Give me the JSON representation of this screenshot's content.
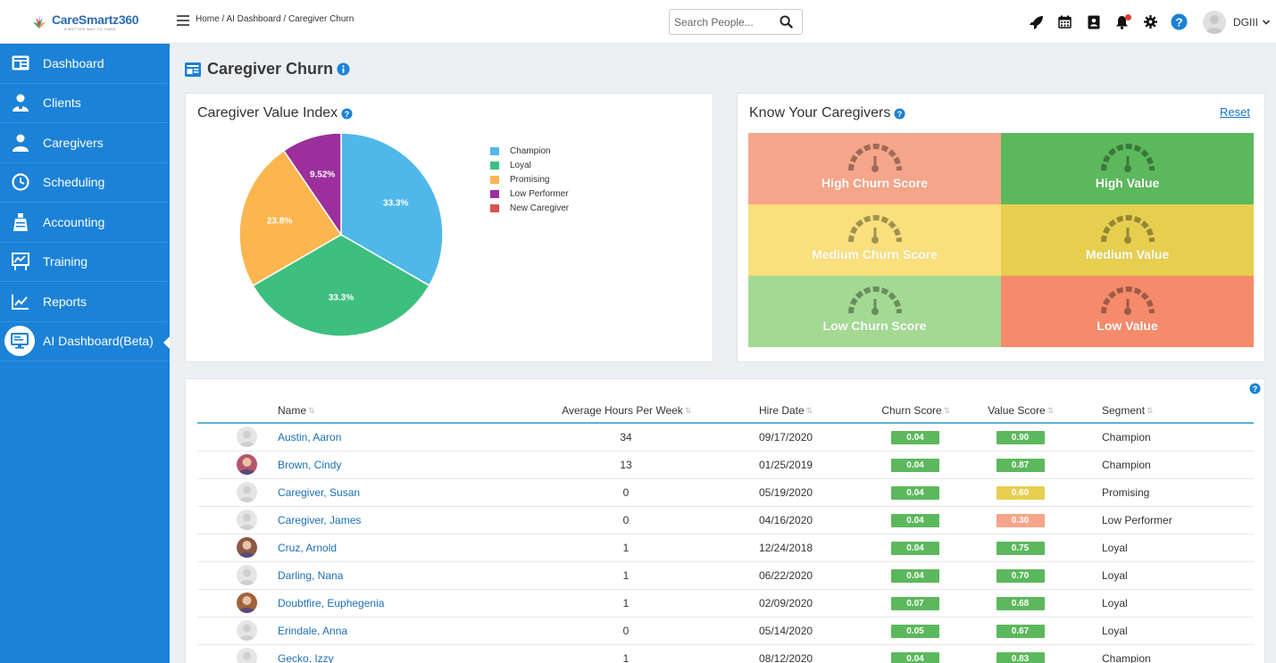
{
  "app": {
    "name": "CareSmartz360",
    "tagline": "A BETTER WAY TO CARE"
  },
  "sidebar": {
    "items": [
      {
        "label": "Dashboard",
        "icon": "dashboard-icon"
      },
      {
        "label": "Clients",
        "icon": "clients-icon"
      },
      {
        "label": "Caregivers",
        "icon": "caregivers-icon"
      },
      {
        "label": "Scheduling",
        "icon": "clock-icon"
      },
      {
        "label": "Accounting",
        "icon": "accounting-icon"
      },
      {
        "label": "Training",
        "icon": "training-icon"
      },
      {
        "label": "Reports",
        "icon": "reports-icon"
      },
      {
        "label": "AI Dashboard(Beta)",
        "icon": "monitor-icon",
        "active": true
      }
    ]
  },
  "header": {
    "breadcrumb": "Home / AI Dashboard / Caregiver Churn",
    "search_placeholder": "Search People...",
    "user": "DGIII"
  },
  "page": {
    "title": "Caregiver Churn"
  },
  "value_index": {
    "title": "Caregiver Value Index"
  },
  "chart_data": {
    "type": "pie",
    "series": [
      {
        "name": "Champion",
        "value": 33.3,
        "label": "33.3%",
        "color": "#4fb8e8"
      },
      {
        "name": "Loyal",
        "value": 33.3,
        "label": "33.3%",
        "color": "#3dbf7f"
      },
      {
        "name": "Promising",
        "value": 23.8,
        "label": "23.8%",
        "color": "#fbb64f"
      },
      {
        "name": "Low Performer",
        "value": 9.52,
        "label": "9.52%",
        "color": "#9b2f9b"
      },
      {
        "name": "New Caregiver",
        "value": 0,
        "label": "",
        "color": "#d9534f"
      }
    ],
    "legend_position": "right"
  },
  "know": {
    "title": "Know Your Caregivers",
    "reset": "Reset",
    "cells": [
      {
        "label": "High Churn Score",
        "color": "#f5a58a"
      },
      {
        "label": "High Value",
        "color": "#5cb85c"
      },
      {
        "label": "Medium Churn Score",
        "color": "#f9e07c"
      },
      {
        "label": "Medium Value",
        "color": "#e6cf4f"
      },
      {
        "label": "Low Churn Score",
        "color": "#a3d992"
      },
      {
        "label": "Low Value",
        "color": "#f58b6a"
      }
    ]
  },
  "table": {
    "columns": [
      "Name",
      "Average Hours Per Week",
      "Hire Date",
      "Churn Score",
      "Value Score",
      "Segment"
    ],
    "rows": [
      {
        "name": "Austin, Aaron",
        "hours": "34",
        "hire": "09/17/2020",
        "churn": "0.04",
        "churn_color": "#5cb85c",
        "value": "0.90",
        "value_color": "#5cb85c",
        "segment": "Champion",
        "photo": false
      },
      {
        "name": "Brown, Cindy",
        "hours": "13",
        "hire": "01/25/2019",
        "churn": "0.04",
        "churn_color": "#5cb85c",
        "value": "0.87",
        "value_color": "#5cb85c",
        "segment": "Champion",
        "photo": true
      },
      {
        "name": "Caregiver, Susan",
        "hours": "0",
        "hire": "05/19/2020",
        "churn": "0.04",
        "churn_color": "#5cb85c",
        "value": "0.60",
        "value_color": "#e6cf4f",
        "segment": "Promising",
        "photo": false
      },
      {
        "name": "Caregiver, James",
        "hours": "0",
        "hire": "04/16/2020",
        "churn": "0.04",
        "churn_color": "#5cb85c",
        "value": "0.30",
        "value_color": "#f5a58a",
        "segment": "Low Performer",
        "photo": false
      },
      {
        "name": "Cruz, Arnold",
        "hours": "1",
        "hire": "12/24/2018",
        "churn": "0.04",
        "churn_color": "#5cb85c",
        "value": "0.75",
        "value_color": "#5cb85c",
        "segment": "Loyal",
        "photo": true
      },
      {
        "name": "Darling, Nana",
        "hours": "1",
        "hire": "06/22/2020",
        "churn": "0.04",
        "churn_color": "#5cb85c",
        "value": "0.70",
        "value_color": "#5cb85c",
        "segment": "Loyal",
        "photo": false
      },
      {
        "name": "Doubtfire, Euphegenia",
        "hours": "1",
        "hire": "02/09/2020",
        "churn": "0.07",
        "churn_color": "#5cb85c",
        "value": "0.68",
        "value_color": "#5cb85c",
        "segment": "Loyal",
        "photo": true
      },
      {
        "name": "Erindale, Anna",
        "hours": "0",
        "hire": "05/14/2020",
        "churn": "0.05",
        "churn_color": "#5cb85c",
        "value": "0.67",
        "value_color": "#5cb85c",
        "segment": "Loyal",
        "photo": false
      },
      {
        "name": "Gecko, Izzy",
        "hours": "1",
        "hire": "08/12/2020",
        "churn": "0.04",
        "churn_color": "#5cb85c",
        "value": "0.83",
        "value_color": "#5cb85c",
        "segment": "Champion",
        "photo": false
      }
    ]
  }
}
